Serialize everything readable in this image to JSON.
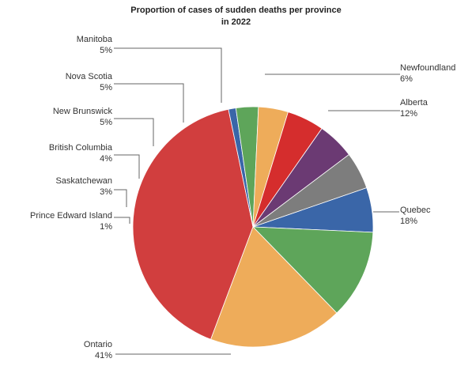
{
  "chart_data": {
    "type": "pie",
    "title": "Proportion of cases of sudden deaths per province\nin 2022",
    "slices": [
      {
        "label": "Newfoundland",
        "value": 6,
        "display": "6%",
        "color": "#3a66a8"
      },
      {
        "label": "Alberta",
        "value": 12,
        "display": "12%",
        "color": "#5ea55a"
      },
      {
        "label": "Quebec",
        "value": 18,
        "display": "18%",
        "color": "#eeac5a"
      },
      {
        "label": "Ontario",
        "value": 41,
        "display": "41%",
        "color": "#d13e3e"
      },
      {
        "label": "Prince Edward Island",
        "value": 1,
        "display": "1%",
        "color": "#3a66a8"
      },
      {
        "label": "Saskatchewan",
        "value": 3,
        "display": "3%",
        "color": "#5ea55a"
      },
      {
        "label": "British Columbia",
        "value": 4,
        "display": "4%",
        "color": "#eeac5a"
      },
      {
        "label": "New Brunswick",
        "value": 5,
        "display": "5%",
        "color": "#d52d2d"
      },
      {
        "label": "Nova Scotia",
        "value": 5,
        "display": "5%",
        "color": "#6b3a73"
      },
      {
        "label": "Manitoba",
        "value": 5,
        "display": "5%",
        "color": "#7d7d7d"
      }
    ]
  }
}
